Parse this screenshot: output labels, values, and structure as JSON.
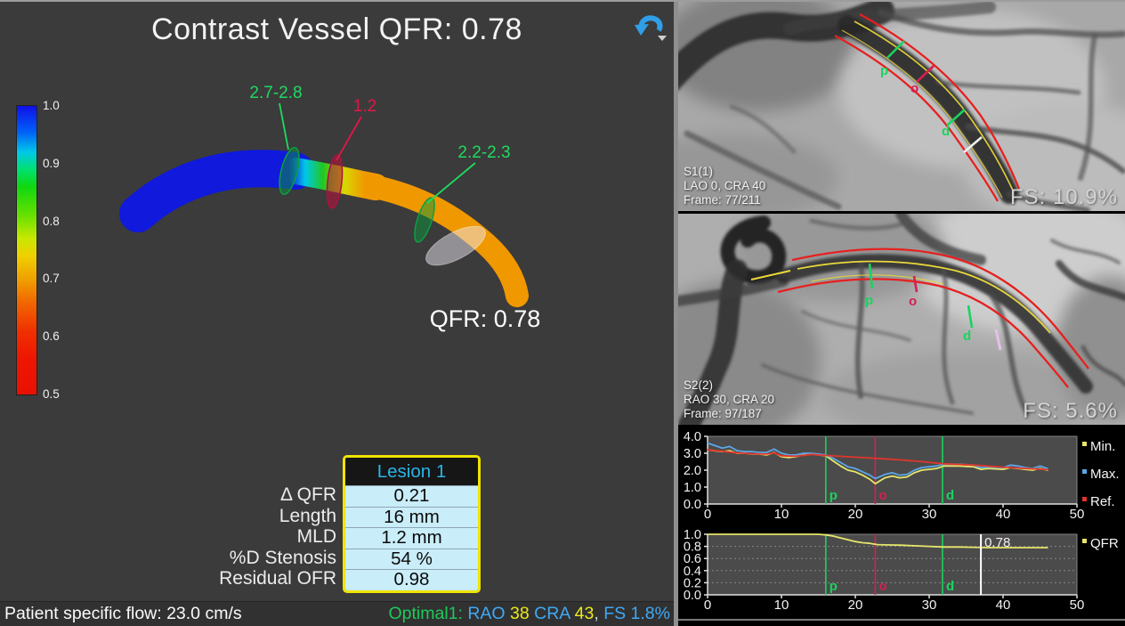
{
  "main_view": {
    "title": "Contrast Vessel QFR: 0.78",
    "qfr_label": "QFR: 0.78",
    "undo_icon": "rotate-back-arrow",
    "accent_blue": "#2f9fe8",
    "colorbar": {
      "ticks": [
        "1.0",
        "0.9",
        "0.8",
        "0.7",
        "0.6",
        "0.5"
      ]
    },
    "vessel_markers": [
      {
        "label": "2.7-2.8",
        "color": "#1edb5f"
      },
      {
        "label": "1.2",
        "color": "#e01748"
      },
      {
        "label": "2.2-2.3",
        "color": "#1edb5f"
      }
    ]
  },
  "lesion_panel": {
    "row_labels": [
      "Δ QFR",
      "Length",
      "MLD",
      "%D Stenosis",
      "Residual OFR"
    ],
    "table": {
      "header": "Lesion 1",
      "header_color": "#2ab4e8",
      "border_color": "#f0e400",
      "row_bg": "#c9edf9",
      "values": [
        "0.21",
        "16 mm",
        "1.2 mm",
        "54 %",
        "0.98"
      ]
    }
  },
  "status_bar": {
    "left_text": "Patient specific flow: 23.0 cm/s",
    "right_segments": [
      {
        "text": "Optimal1: ",
        "color": "#1fc95a"
      },
      {
        "text": "RAO ",
        "color": "#3fa9f5"
      },
      {
        "text": "38 ",
        "color": "#e8e81c"
      },
      {
        "text": "CRA ",
        "color": "#3fa9f5"
      },
      {
        "text": "43",
        "color": "#e8e81c"
      },
      {
        "text": ", ",
        "color": "#cfcfcf"
      },
      {
        "text": "FS 1.8%",
        "color": "#3fa9f5"
      }
    ]
  },
  "angio_panels": [
    {
      "label": "S1(1)",
      "projection": "LAO 0, CRA 40",
      "frame": "Frame: 77/211",
      "fs": "FS: 10.9%",
      "markers": [
        {
          "label": "p",
          "color": "#19d45f"
        },
        {
          "label": "o",
          "color": "#d42053"
        },
        {
          "label": "d",
          "color": "#19d45f"
        }
      ]
    },
    {
      "label": "S2(2)",
      "projection": "RAO 30, CRA 20",
      "frame": "Frame: 97/187",
      "fs": "FS: 5.6%",
      "markers": [
        {
          "label": "p",
          "color": "#19d45f"
        },
        {
          "label": "o",
          "color": "#d42053"
        },
        {
          "label": "d",
          "color": "#19d45f"
        }
      ]
    }
  ],
  "chart_data": [
    {
      "type": "line",
      "title": "Vessel diameter profile (mm)",
      "xlim": [
        0,
        50
      ],
      "ylim": [
        0,
        4
      ],
      "x_ticks": [
        0,
        10,
        20,
        30,
        40,
        50
      ],
      "y_ticks": [
        4.0,
        3.0,
        2.0,
        1.0,
        0.0
      ],
      "grid": false,
      "legend_position": "right",
      "legend": [
        {
          "name": "Min.",
          "color": "#e6e66a"
        },
        {
          "name": "Max.",
          "color": "#5aa7e8"
        },
        {
          "name": "Ref.",
          "color": "#e0352b"
        }
      ],
      "markers": [
        {
          "label": "p",
          "x": 16,
          "color": "#19d45f"
        },
        {
          "label": "o",
          "x": 22.7,
          "color": "#d42053"
        },
        {
          "label": "d",
          "x": 31.8,
          "color": "#19d45f"
        }
      ],
      "series": [
        {
          "name": "Min.",
          "color": "#e6e66a",
          "x": [
            0,
            1,
            2,
            3,
            4,
            5,
            6,
            7,
            8,
            9,
            10,
            11,
            12,
            13,
            14,
            15,
            16,
            17,
            18,
            19,
            20,
            21,
            22,
            22.7,
            24,
            25,
            26,
            27,
            28,
            29,
            30,
            31,
            32,
            34,
            36,
            37,
            38,
            40,
            41,
            42,
            43,
            44,
            45,
            46
          ],
          "y": [
            3.2,
            3.15,
            3.1,
            3.15,
            3.0,
            3.0,
            2.95,
            2.95,
            2.9,
            3.05,
            2.8,
            2.75,
            2.8,
            2.9,
            2.95,
            2.9,
            2.85,
            2.55,
            2.25,
            2.0,
            1.9,
            1.7,
            1.45,
            1.2,
            1.55,
            1.65,
            1.55,
            1.6,
            1.85,
            2.0,
            2.05,
            2.1,
            2.25,
            2.25,
            2.2,
            2.05,
            2.1,
            2.05,
            2.15,
            2.1,
            2.05,
            2.0,
            2.1,
            2.0
          ]
        },
        {
          "name": "Max.",
          "color": "#5aa7e8",
          "x": [
            0,
            1,
            2,
            3,
            4,
            5,
            6,
            7,
            8,
            9,
            10,
            11,
            12,
            13,
            14,
            15,
            16,
            17,
            18,
            19,
            20,
            21,
            22,
            22.7,
            24,
            25,
            26,
            27,
            28,
            29,
            30,
            31,
            32,
            34,
            36,
            37,
            38,
            40,
            41,
            42,
            43,
            44,
            45,
            46
          ],
          "y": [
            3.6,
            3.45,
            3.3,
            3.4,
            3.15,
            3.1,
            3.1,
            3.05,
            3.05,
            3.25,
            3.0,
            2.9,
            2.9,
            3.0,
            3.0,
            2.95,
            2.9,
            2.7,
            2.45,
            2.2,
            2.1,
            1.9,
            1.7,
            1.5,
            1.75,
            1.85,
            1.7,
            1.75,
            2.0,
            2.15,
            2.2,
            2.25,
            2.35,
            2.35,
            2.3,
            2.15,
            2.2,
            2.15,
            2.3,
            2.25,
            2.15,
            2.1,
            2.25,
            2.1
          ]
        },
        {
          "name": "Ref.",
          "color": "#e0352b",
          "x": [
            0,
            2,
            4,
            6,
            8,
            9,
            10,
            12,
            14,
            16,
            20,
            24,
            28,
            32,
            36,
            40,
            43,
            46
          ],
          "y": [
            3.2,
            3.12,
            3.02,
            2.97,
            2.95,
            3.02,
            2.85,
            2.82,
            2.93,
            2.87,
            2.77,
            2.67,
            2.55,
            2.38,
            2.3,
            2.18,
            2.1,
            2.03
          ]
        }
      ]
    },
    {
      "type": "line",
      "title": "QFR pullback",
      "xlim": [
        0,
        50
      ],
      "ylim": [
        0,
        1
      ],
      "x_ticks": [
        0,
        10,
        20,
        30,
        40,
        50
      ],
      "y_ticks": [
        1.0,
        0.8,
        0.6,
        0.4,
        0.2,
        0.0
      ],
      "gridlines_y": [
        0.2,
        0.4,
        0.6,
        0.8
      ],
      "legend_position": "right",
      "legend": [
        {
          "name": "QFR",
          "color": "#e6e66a"
        }
      ],
      "markers": [
        {
          "label": "p",
          "x": 16,
          "color": "#19d45f"
        },
        {
          "label": "o",
          "x": 22.7,
          "color": "#d42053"
        },
        {
          "label": "d",
          "x": 31.8,
          "color": "#19d45f"
        }
      ],
      "cursor": {
        "x": 37,
        "label": "0.78",
        "color": "#ffffff"
      },
      "series": [
        {
          "name": "QFR",
          "color": "#e6e66a",
          "x": [
            0,
            4,
            8,
            12,
            15,
            16,
            17,
            18,
            19,
            20,
            21,
            22,
            23,
            24,
            26,
            28,
            30,
            32,
            34,
            36,
            38,
            40,
            42,
            44,
            46
          ],
          "y": [
            1.0,
            1.0,
            1.0,
            1.0,
            1.0,
            0.99,
            0.97,
            0.94,
            0.91,
            0.88,
            0.86,
            0.85,
            0.83,
            0.825,
            0.82,
            0.81,
            0.8,
            0.79,
            0.79,
            0.785,
            0.78,
            0.78,
            0.78,
            0.78,
            0.78
          ]
        }
      ]
    }
  ]
}
